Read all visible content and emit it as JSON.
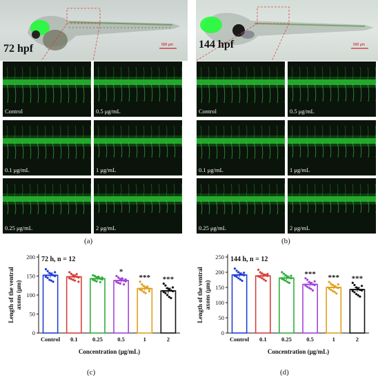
{
  "panel_a": {
    "header_label": "72 hpf",
    "scale_label": "500 μm",
    "tiles": [
      "Control",
      "0.5 μg/mL",
      "0.1 μg/mL",
      "1 μg/mL",
      "0.25 μg/mL",
      "2 μg/mL"
    ],
    "caption": "(a)"
  },
  "panel_b": {
    "header_label": "144 hpf",
    "scale_label": "500 μm",
    "tiles": [
      "Control",
      "0.5 μg/mL",
      "0.1 μg/mL",
      "1 μg/mL",
      "0.25 μg/mL",
      "2 μg/mL"
    ],
    "caption": "(b)"
  },
  "captions": {
    "c": "(c)",
    "d": "(d)"
  },
  "chart_data": [
    {
      "type": "bar",
      "title": "72 h, n = 12",
      "categories": [
        "Control",
        "0.1",
        "0.25",
        "0.5",
        "1",
        "2"
      ],
      "values": [
        152,
        148,
        143,
        138,
        117,
        111
      ],
      "errors": [
        6,
        5,
        4,
        5,
        5,
        7
      ],
      "significance": [
        "",
        "",
        "",
        "*",
        "***",
        "***"
      ],
      "ylabel": "Length of the ventral axons (μm)",
      "xlabel": "Concentration (μg/mL)",
      "ylim": [
        0,
        200
      ],
      "yticks": [
        0,
        50,
        100,
        150,
        200
      ],
      "colors": [
        "#1f3fd6",
        "#d6403a",
        "#2fae3a",
        "#a244d6",
        "#e0a01c",
        "#111111"
      ],
      "points": [
        [
          168,
          163,
          158,
          155,
          152,
          150,
          148,
          145,
          140,
          138,
          135,
          160
        ],
        [
          160,
          156,
          152,
          150,
          148,
          146,
          144,
          142,
          140,
          138,
          155,
          135
        ],
        [
          152,
          150,
          147,
          145,
          143,
          141,
          140,
          138,
          136,
          148,
          134,
          146
        ],
        [
          150,
          146,
          142,
          140,
          138,
          136,
          134,
          132,
          130,
          144,
          128,
          141
        ],
        [
          135,
          128,
          124,
          120,
          118,
          116,
          114,
          112,
          108,
          105,
          122,
          110
        ],
        [
          130,
          125,
          118,
          115,
          112,
          110,
          108,
          105,
          100,
          95,
          92,
          120
        ]
      ]
    },
    {
      "type": "bar",
      "title": "144 h, n = 12",
      "categories": [
        "Control",
        "0.1",
        "0.25",
        "0.5",
        "1",
        "2"
      ],
      "values": [
        191,
        188,
        181,
        160,
        150,
        143
      ],
      "errors": [
        7,
        6,
        6,
        7,
        6,
        7
      ],
      "significance": [
        "",
        "",
        "",
        "***",
        "***",
        "***"
      ],
      "ylabel": "Length of the ventral axons (μm)",
      "xlabel": "Concentration (μg/mL)",
      "ylim": [
        0,
        250
      ],
      "yticks": [
        0,
        50,
        100,
        150,
        200,
        250
      ],
      "colors": [
        "#1f3fd6",
        "#d6403a",
        "#2fae3a",
        "#a244d6",
        "#e0a01c",
        "#111111"
      ],
      "points": [
        [
          212,
          205,
          200,
          195,
          192,
          190,
          188,
          185,
          180,
          176,
          172,
          198
        ],
        [
          208,
          200,
          196,
          192,
          190,
          188,
          186,
          184,
          180,
          176,
          172,
          194
        ],
        [
          200,
          195,
          190,
          186,
          182,
          180,
          178,
          175,
          172,
          168,
          165,
          188
        ],
        [
          180,
          175,
          168,
          164,
          160,
          158,
          156,
          152,
          148,
          145,
          140,
          170
        ],
        [
          168,
          162,
          158,
          154,
          150,
          148,
          146,
          142,
          138,
          135,
          130,
          160
        ],
        [
          165,
          158,
          150,
          146,
          142,
          140,
          138,
          134,
          128,
          124,
          120,
          155
        ]
      ]
    }
  ]
}
